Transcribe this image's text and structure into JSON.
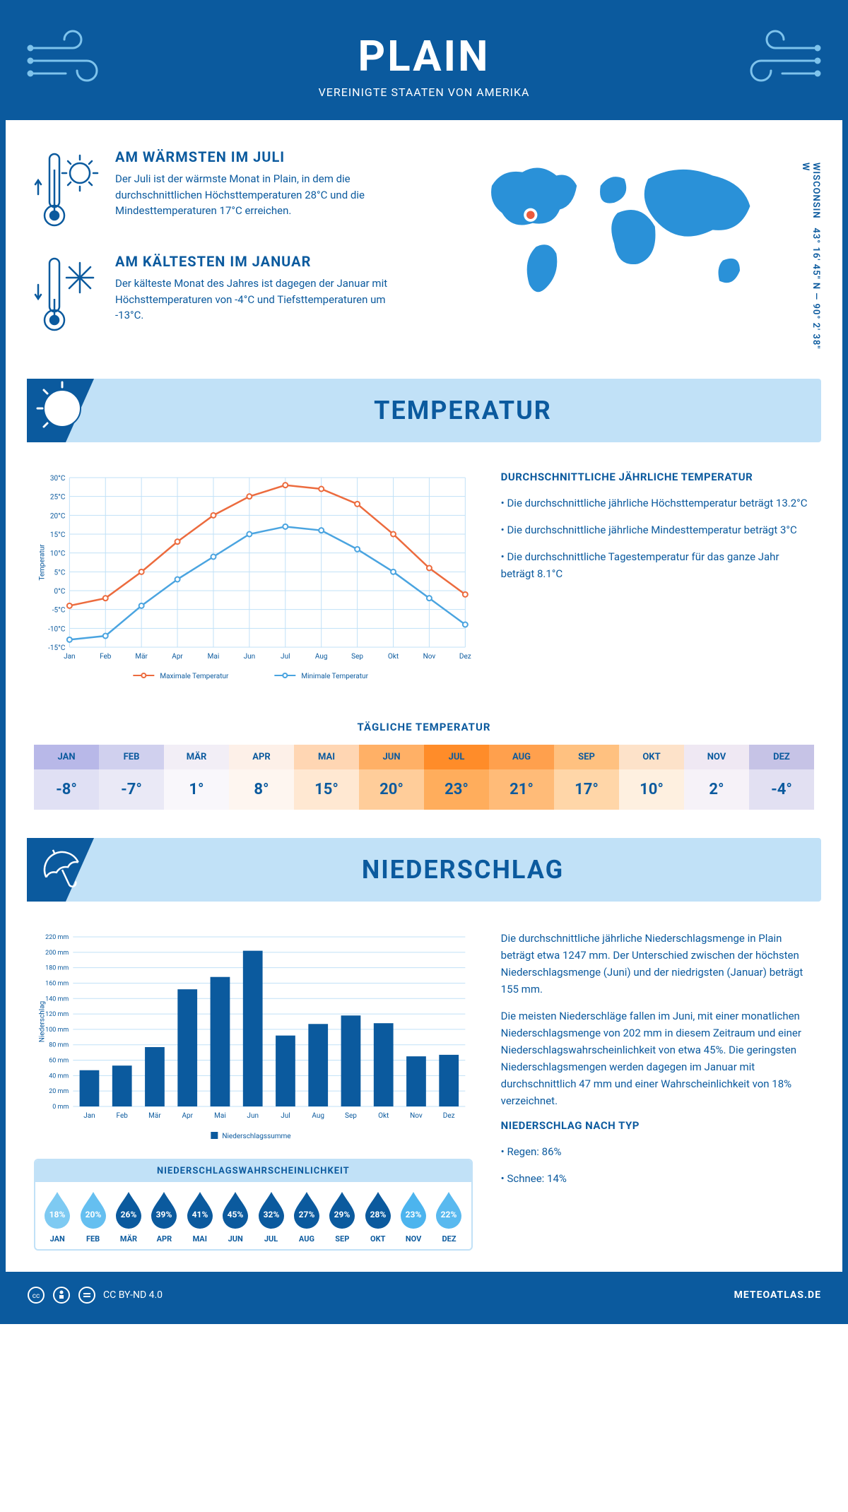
{
  "header": {
    "city": "PLAIN",
    "country": "VEREINIGTE STAATEN VON AMERIKA"
  },
  "coords": {
    "line1": "43° 16' 45\" N — 90° 2' 38\" W",
    "region": "WISCONSIN"
  },
  "warmest": {
    "title": "AM WÄRMSTEN IM JULI",
    "text": "Der Juli ist der wärmste Monat in Plain, in dem die durchschnittlichen Höchsttemperaturen 28°C und die Mindesttemperaturen 17°C erreichen."
  },
  "coldest": {
    "title": "AM KÄLTESTEN IM JANUAR",
    "text": "Der kälteste Monat des Jahres ist dagegen der Januar mit Höchsttemperaturen von -4°C und Tiefsttemperaturen um -13°C."
  },
  "temp_section": {
    "title": "TEMPERATUR",
    "averages_title": "DURCHSCHNITTLICHE JÄHRLICHE TEMPERATUR",
    "p1": "• Die durchschnittliche jährliche Höchsttemperatur beträgt 13.2°C",
    "p2": "• Die durchschnittliche jährliche Mindesttemperatur beträgt 3°C",
    "p3": "• Die durchschnittliche Tagestemperatur für das ganze Jahr beträgt 8.1°C",
    "daily_title": "TÄGLICHE TEMPERATUR",
    "chart": {
      "months": [
        "Jan",
        "Feb",
        "Mär",
        "Apr",
        "Mai",
        "Jun",
        "Jul",
        "Aug",
        "Sep",
        "Okt",
        "Nov",
        "Dez"
      ],
      "max": [
        -4,
        -2,
        5,
        13,
        20,
        25,
        28,
        27,
        23,
        15,
        6,
        -1
      ],
      "min": [
        -13,
        -12,
        -4,
        3,
        9,
        15,
        17,
        16,
        11,
        5,
        -2,
        -9
      ],
      "max_color": "#ec6b3e",
      "min_color": "#4aa4e0",
      "ymin": -15,
      "ymax": 30,
      "ystep": 5,
      "ylabel": "Temperatur",
      "legend_max": "Maximale Temperatur",
      "legend_min": "Minimale Temperatur",
      "grid": "#c1e1f7",
      "axis": "#0b5a9e",
      "text": "#0b5a9e"
    },
    "daily": {
      "months": [
        "JAN",
        "FEB",
        "MÄR",
        "APR",
        "MAI",
        "JUN",
        "JUL",
        "AUG",
        "SEP",
        "OKT",
        "NOV",
        "DEZ"
      ],
      "values": [
        "-8°",
        "-7°",
        "1°",
        "8°",
        "15°",
        "20°",
        "23°",
        "21°",
        "17°",
        "10°",
        "2°",
        "-4°"
      ],
      "header_colors": [
        "#b8b8e8",
        "#d0d0ee",
        "#f2eef6",
        "#fdf0e8",
        "#ffd6b3",
        "#ffb066",
        "#ff8c29",
        "#ffa04d",
        "#ffc180",
        "#fde2c9",
        "#efe8f3",
        "#c6c3e6"
      ],
      "value_colors": [
        "#e0e0f4",
        "#eae9f6",
        "#f9f7fb",
        "#fef6f0",
        "#ffe8d2",
        "#ffcd9a",
        "#ffad5c",
        "#ffbb78",
        "#ffd6a8",
        "#fef0e0",
        "#f6f2f8",
        "#e2e0f2"
      ]
    }
  },
  "precip_section": {
    "title": "NIEDERSCHLAG",
    "text1": "Die durchschnittliche jährliche Niederschlagsmenge in Plain beträgt etwa 1247 mm. Der Unterschied zwischen der höchsten Niederschlagsmenge (Juni) und der niedrigsten (Januar) beträgt 155 mm.",
    "text2": "Die meisten Niederschläge fallen im Juni, mit einer monatlichen Niederschlagsmenge von 202 mm in diesem Zeitraum und einer Niederschlagswahrscheinlichkeit von etwa 45%. Die geringsten Niederschlagsmengen werden dagegen im Januar mit durchschnittlich 47 mm und einer Wahrscheinlichkeit von 18% verzeichnet.",
    "type_title": "NIEDERSCHLAG NACH TYP",
    "type1": "• Regen: 86%",
    "type2": "• Schnee: 14%",
    "chart": {
      "months": [
        "Jan",
        "Feb",
        "Mär",
        "Apr",
        "Mai",
        "Jun",
        "Jul",
        "Aug",
        "Sep",
        "Okt",
        "Nov",
        "Dez"
      ],
      "values": [
        47,
        53,
        77,
        152,
        168,
        202,
        92,
        107,
        118,
        108,
        65,
        67
      ],
      "ymax": 220,
      "ystep": 20,
      "ylabel": "Niederschlag",
      "legend": "Niederschlagssumme",
      "bar_color": "#0b5a9e",
      "grid": "#c1e1f7",
      "text": "#0b5a9e"
    },
    "prob": {
      "title": "NIEDERSCHLAGSWAHRSCHEINLICHKEIT",
      "months": [
        "JAN",
        "FEB",
        "MÄR",
        "APR",
        "MAI",
        "JUN",
        "JUL",
        "AUG",
        "SEP",
        "OKT",
        "NOV",
        "DEZ"
      ],
      "values": [
        "18%",
        "20%",
        "26%",
        "39%",
        "41%",
        "45%",
        "32%",
        "27%",
        "29%",
        "28%",
        "23%",
        "22%"
      ],
      "colors": [
        "#7ecaf2",
        "#65bff0",
        "#0b5a9e",
        "#0b5a9e",
        "#0b5a9e",
        "#0b5a9e",
        "#0b5a9e",
        "#0b5a9e",
        "#0b5a9e",
        "#0b5a9e",
        "#4cb4ee",
        "#59b9ef"
      ]
    }
  },
  "footer": {
    "license": "CC BY-ND 4.0",
    "site": "METEOATLAS.DE"
  }
}
